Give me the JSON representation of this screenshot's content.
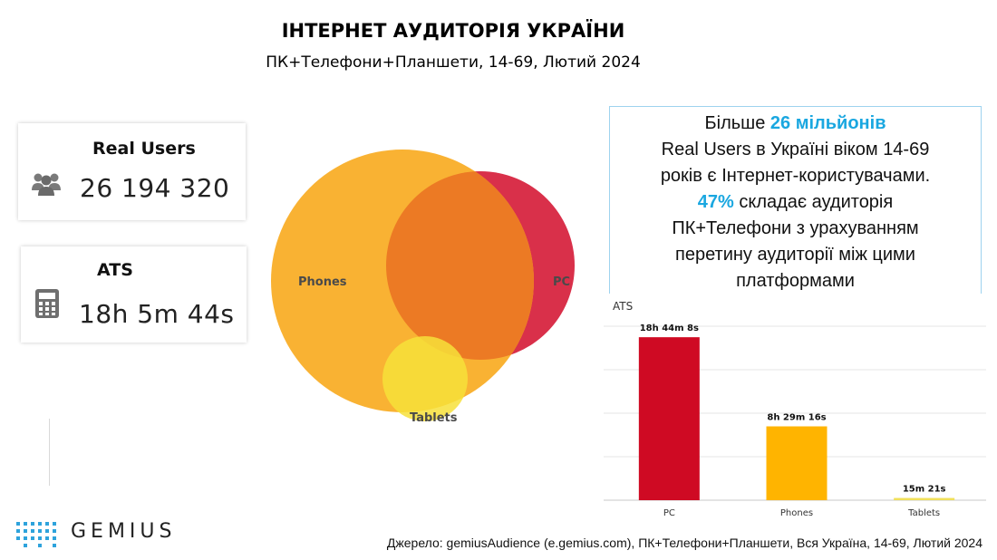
{
  "header": {
    "title": "ІНТЕРНЕТ АУДИТОРІЯ УКРАЇНИ",
    "subtitle": "ПК+Телефони+Планшети, 14-69, Лютий 2024"
  },
  "cards": {
    "real_users": {
      "label": "Real Users",
      "value": "26 194 320",
      "icon": "users-group-icon"
    },
    "ats": {
      "label": "ATS",
      "value": "18h 5m 44s",
      "icon": "calculator-icon"
    }
  },
  "venn": {
    "labels": {
      "phones": "Phones",
      "pc": "PC",
      "tablets": "Tablets"
    },
    "colors": {
      "phones": "#f9b233",
      "pc": "#d9304a",
      "overlap": "#ec7a24",
      "tablets": "#f7e03a"
    }
  },
  "infobox": {
    "line1_prefix": "Більше ",
    "line1_highlight": "26 мільйонів",
    "line2": "Real Users в Україні віком 14-69",
    "line3": "років є Інтернет-користувачами.",
    "line4_highlight": "47%",
    "line4_rest": " складає аудиторія",
    "line5": "ПК+Телефони з урахуванням",
    "line6": "перетину аудиторії між цими",
    "line7": "платформами",
    "highlight_color": "#1aa7e0"
  },
  "chart_data": {
    "type": "bar",
    "title": "ATS",
    "categories": [
      "PC",
      "Phones",
      "Tablets"
    ],
    "values_seconds": [
      67448,
      30556,
      921
    ],
    "value_labels": [
      "18h 44m 8s",
      "8h 29m 16s",
      "15m 21s"
    ],
    "colors": [
      "#cf0a23",
      "#ffb400",
      "#f1e05a"
    ],
    "ylim_seconds": [
      0,
      72000
    ],
    "grid": true,
    "legend": "none"
  },
  "footer": {
    "brand": "GEMIUS",
    "source": "Джерело: gemiusAudience (e.gemius.com), ПК+Телефони+Планшети, Вся Україна, 14-69, Лютий 2024"
  }
}
